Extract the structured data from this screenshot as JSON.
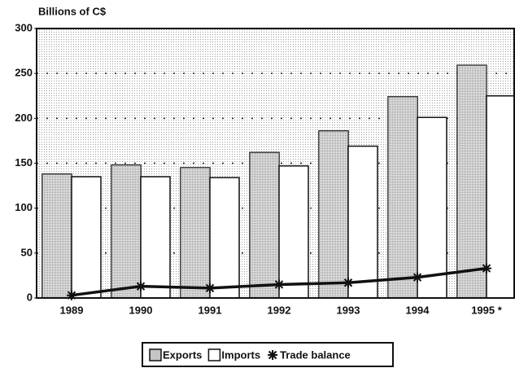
{
  "chart_data": {
    "type": "bar",
    "y_label": "Billions of C$",
    "categories": [
      "1989",
      "1990",
      "1991",
      "1992",
      "1993",
      "1994",
      "1995 *"
    ],
    "series": [
      {
        "name": "Exports",
        "color": "#c4c4c4",
        "values": [
          138,
          148,
          145,
          162,
          186,
          224,
          259
        ]
      },
      {
        "name": "Imports",
        "color": "#ffffff",
        "values": [
          135,
          135,
          134,
          147,
          169,
          201,
          225
        ]
      },
      {
        "name": "Trade balance",
        "color": "#111111",
        "type": "line",
        "values": [
          3,
          13,
          11,
          15,
          17,
          23,
          33
        ]
      }
    ],
    "ylim": [
      0,
      300
    ],
    "yticks": [
      0,
      50,
      100,
      150,
      200,
      250,
      300
    ],
    "grid": true
  }
}
